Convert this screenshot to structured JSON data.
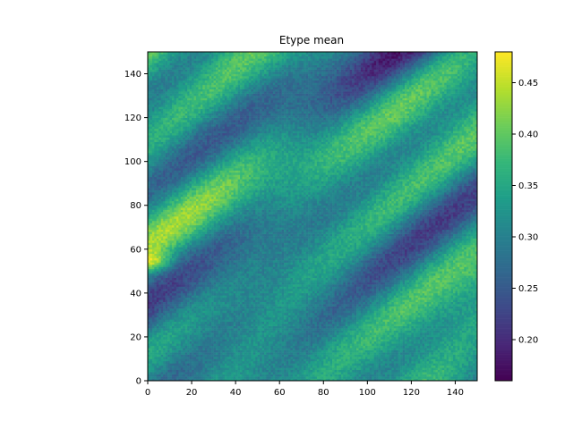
{
  "chart_data": {
    "type": "heatmap",
    "title": "Etype mean",
    "xlabel": "",
    "ylabel": "",
    "grid_size": [
      150,
      150
    ],
    "xlim": [
      0,
      150
    ],
    "ylim": [
      0,
      150
    ],
    "x_ticks": [
      0,
      20,
      40,
      60,
      80,
      100,
      120,
      140
    ],
    "y_ticks": [
      0,
      20,
      40,
      60,
      80,
      100,
      120,
      140
    ],
    "colormap": "viridis",
    "colorbar": {
      "range": [
        0.16,
        0.48
      ],
      "ticks": [
        "0.20",
        "0.25",
        "0.30",
        "0.35",
        "0.40",
        "0.45"
      ],
      "tick_values": [
        0.2,
        0.25,
        0.3,
        0.35,
        0.4,
        0.45
      ]
    },
    "value_mean": 0.31,
    "value_range_observed": [
      0.16,
      0.48
    ],
    "pattern": "diagonal streaky texture oriented toward upper-right; bright patch near x=0-10,y=50-58 (~0.47); bright patches near x=20-45,y=135-142 and x=60-80,y=105-112; dark patches near x=85-110,y=30-40 and x=100-125,y=75-85",
    "grid": false,
    "legend": "colorbar-right"
  }
}
